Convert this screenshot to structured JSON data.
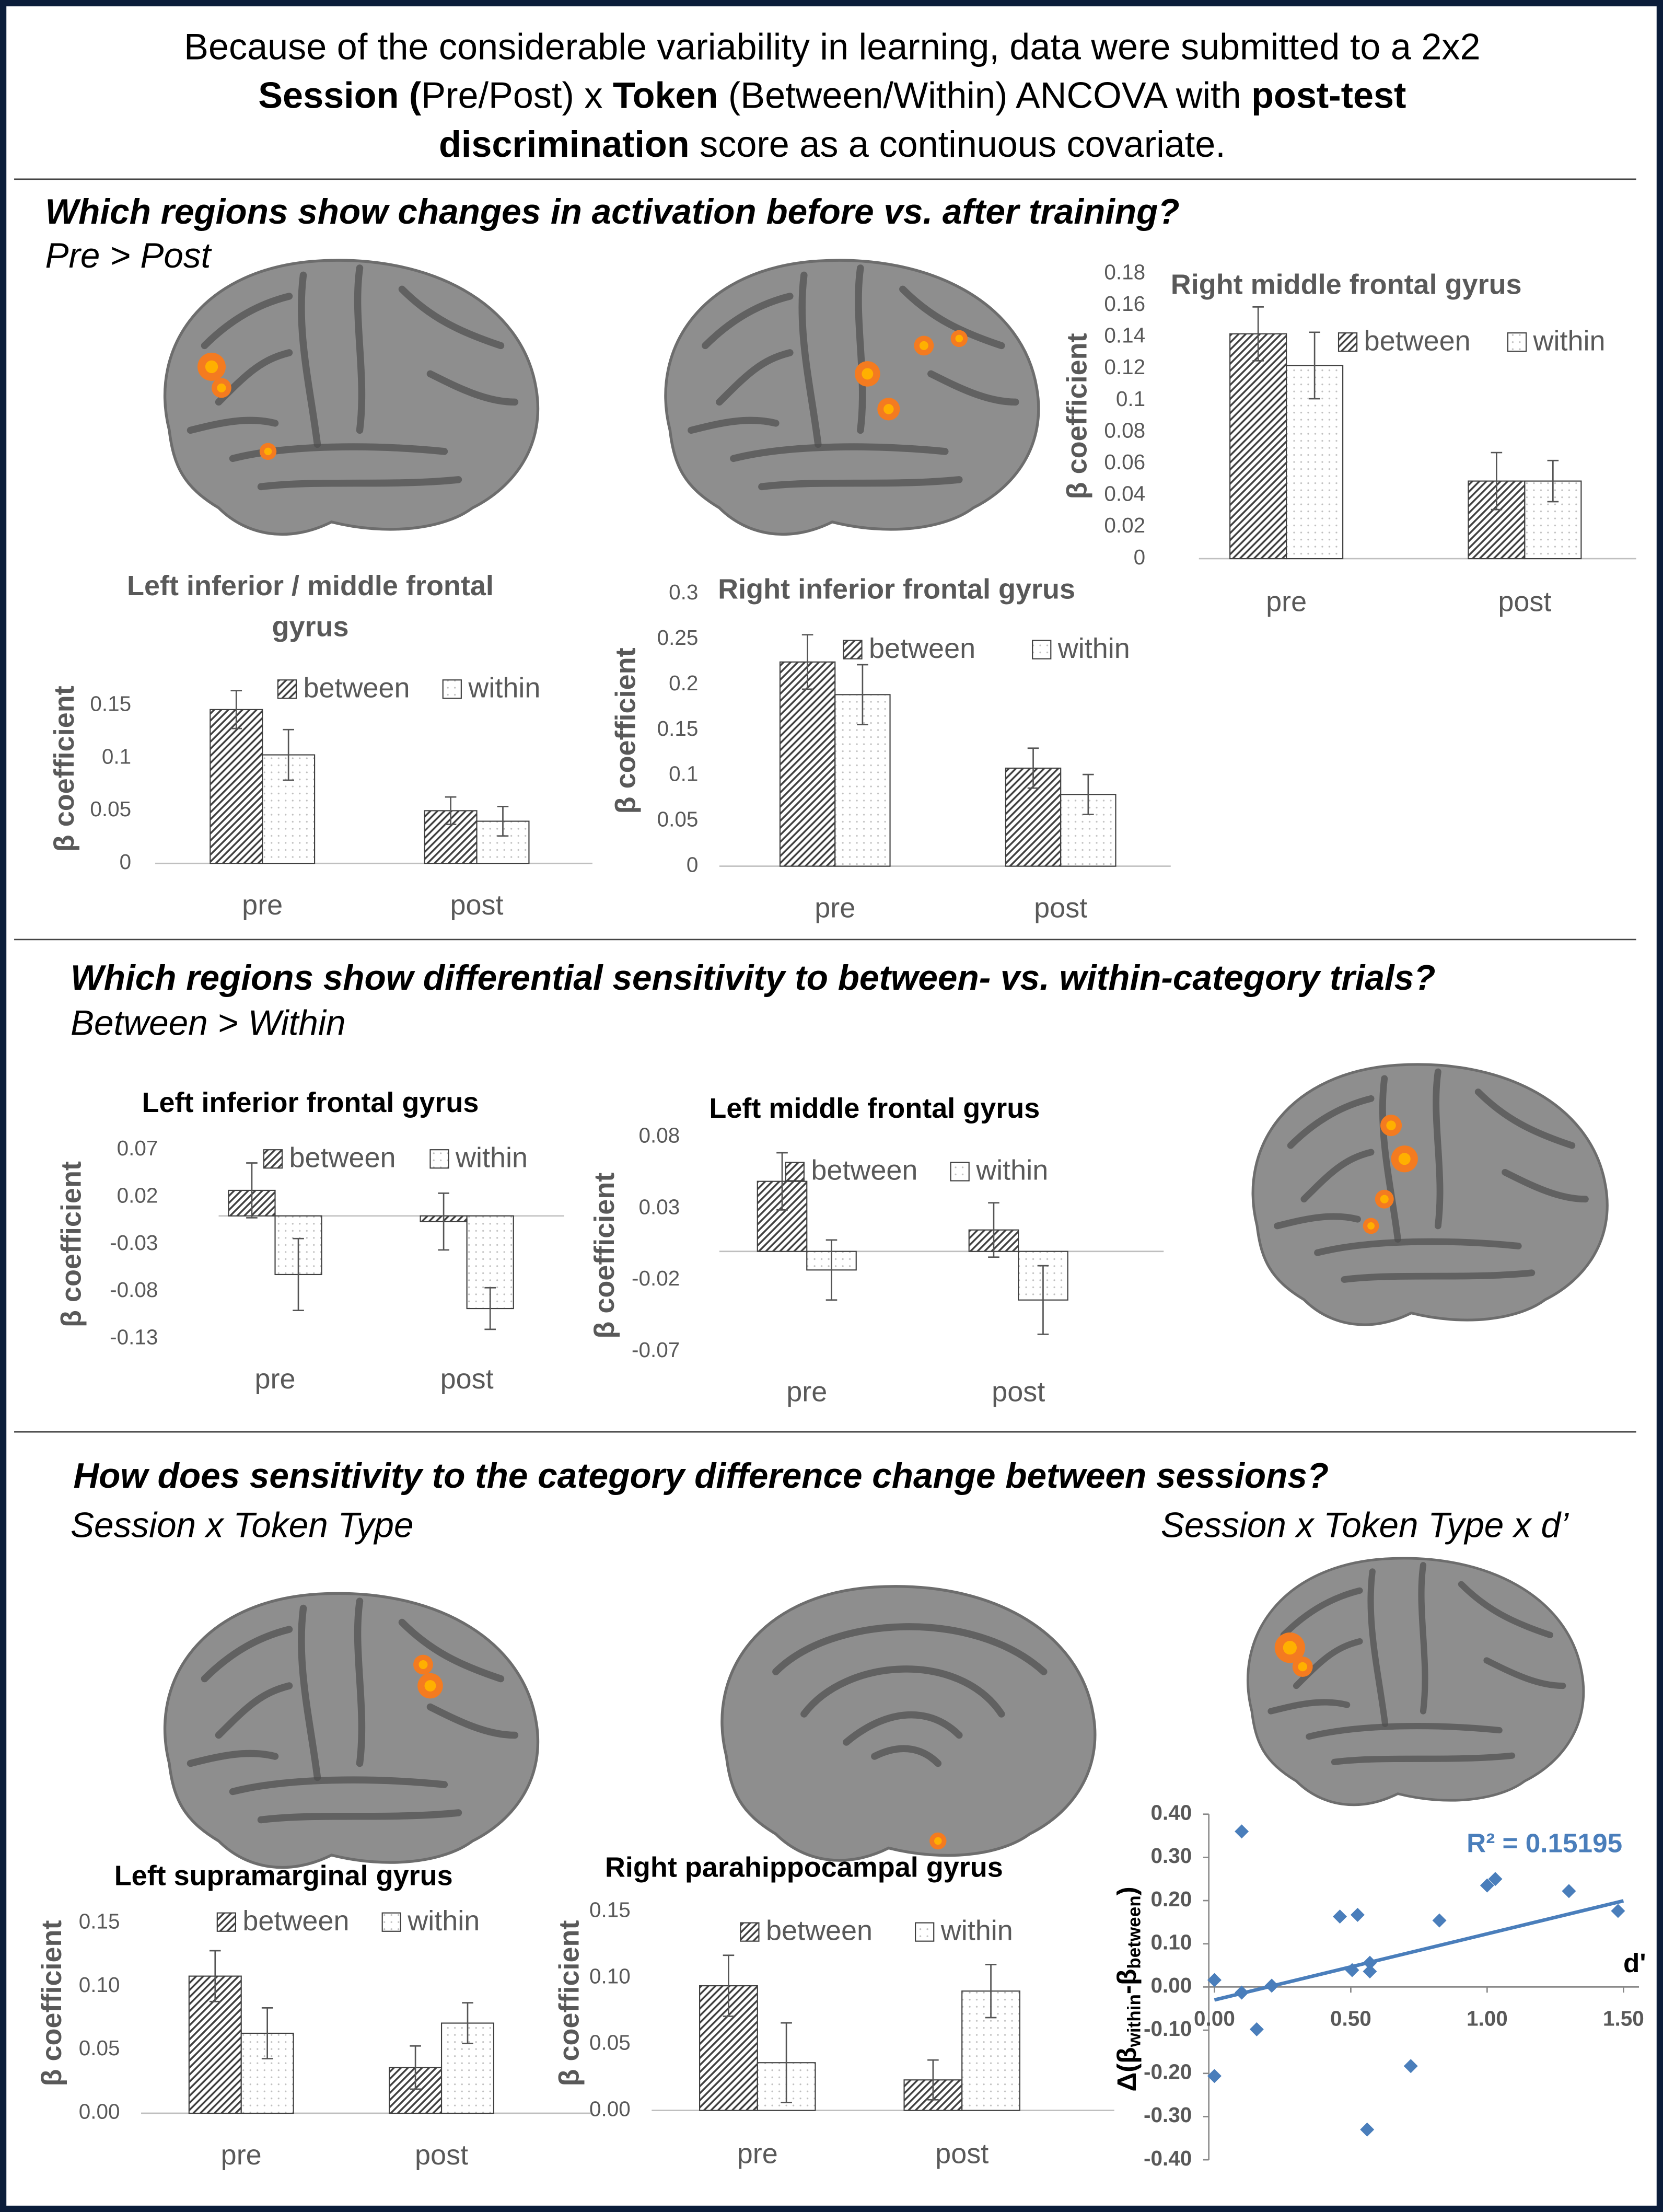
{
  "header": {
    "lines": [
      [
        {
          "text": "Because of the considerable variability in learning, data were submitted to a 2x2",
          "bold": false
        }
      ],
      [
        {
          "text": "Session (",
          "bold": true
        },
        {
          "text": "Pre/Post) x ",
          "bold": false
        },
        {
          "text": "Token",
          "bold": true
        },
        {
          "text": " (Between/Within) ANCOVA with ",
          "bold": false
        },
        {
          "text": "post-test",
          "bold": true
        }
      ],
      [
        {
          "text": "discrimination",
          "bold": true
        },
        {
          "text": " score as a continuous covariate.",
          "bold": false
        }
      ]
    ]
  },
  "sections": [
    {
      "question": "Which regions show changes in activation before vs. after training?",
      "contrasts": [
        "Pre > Post"
      ]
    },
    {
      "question": "Which regions show differential sensitivity to between- vs. within-category trials?",
      "contrasts": [
        "Between > Within"
      ]
    },
    {
      "question": "How does sensitivity to the category difference change between sessions?",
      "contrasts": [
        "Session x Token Type",
        "Session x Token Type x d’"
      ]
    }
  ],
  "chart_data": [
    {
      "type": "bar",
      "title": "Right middle frontal gyrus",
      "ylabel": "β  coefficient",
      "categories": [
        "pre",
        "post"
      ],
      "series": [
        {
          "name": "between",
          "color": "#404040",
          "values": [
            0.142,
            0.049
          ],
          "errors": [
            0.017,
            0.018
          ]
        },
        {
          "name": "within",
          "color": "#bfbfbf",
          "values": [
            0.122,
            0.049
          ],
          "errors": [
            0.021,
            0.013
          ]
        }
      ],
      "ylim": [
        0,
        0.18
      ],
      "yticks": [
        0,
        0.02,
        0.04,
        0.06,
        0.08,
        0.1,
        0.12,
        0.14,
        0.16,
        0.18
      ],
      "grid": false
    },
    {
      "type": "bar",
      "title": "Left inferior / middle frontal gyrus",
      "ylabel": "β  coefficient",
      "categories": [
        "pre",
        "post"
      ],
      "series": [
        {
          "name": "between",
          "color": "#404040",
          "values": [
            0.146,
            0.05
          ],
          "errors": [
            0.018,
            0.013
          ]
        },
        {
          "name": "within",
          "color": "#bfbfbf",
          "values": [
            0.103,
            0.04
          ],
          "errors": [
            0.024,
            0.014
          ]
        }
      ],
      "ylim": [
        0,
        0.15
      ],
      "yticks": [
        0,
        0.05,
        0.1,
        0.15
      ],
      "grid": false
    },
    {
      "type": "bar",
      "title": "Right inferior frontal gyrus",
      "ylabel": "β  coefficient",
      "categories": [
        "pre",
        "post"
      ],
      "series": [
        {
          "name": "between",
          "color": "#404040",
          "values": [
            0.225,
            0.108
          ],
          "errors": [
            0.03,
            0.022
          ]
        },
        {
          "name": "within",
          "color": "#bfbfbf",
          "values": [
            0.189,
            0.079
          ],
          "errors": [
            0.033,
            0.022
          ]
        }
      ],
      "ylim": [
        0,
        0.3
      ],
      "yticks": [
        0,
        0.05,
        0.1,
        0.15,
        0.2,
        0.25,
        0.3
      ],
      "grid": false
    },
    {
      "type": "bar",
      "title": "Left inferior frontal gyrus",
      "ylabel": "β  coefficient",
      "categories": [
        "pre",
        "post"
      ],
      "series": [
        {
          "name": "between",
          "color": "#404040",
          "values": [
            0.027,
            -0.006
          ],
          "errors": [
            0.029,
            0.03
          ]
        },
        {
          "name": "within",
          "color": "#bfbfbf",
          "values": [
            -0.062,
            -0.098
          ],
          "errors": [
            0.038,
            0.022
          ]
        }
      ],
      "ylim": [
        -0.13,
        0.07
      ],
      "yticks": [
        0.07,
        0.02,
        -0.03,
        -0.08,
        -0.13
      ],
      "grid": false
    },
    {
      "type": "bar",
      "title": "Left middle frontal gyrus",
      "ylabel": "β  coefficient",
      "categories": [
        "pre",
        "post"
      ],
      "series": [
        {
          "name": "between",
          "color": "#404040",
          "values": [
            0.049,
            0.015
          ],
          "errors": [
            0.02,
            0.019
          ]
        },
        {
          "name": "within",
          "color": "#bfbfbf",
          "values": [
            -0.013,
            -0.034
          ],
          "errors": [
            0.021,
            0.024
          ]
        }
      ],
      "ylim": [
        -0.07,
        0.08
      ],
      "yticks": [
        0.08,
        0.03,
        -0.02,
        -0.07
      ],
      "grid": false
    },
    {
      "type": "bar",
      "title": "Left supramarginal gyrus",
      "ylabel": "β  coefficient",
      "categories": [
        "pre",
        "post"
      ],
      "series": [
        {
          "name": "between",
          "color": "#404040",
          "values": [
            0.108,
            0.036
          ],
          "errors": [
            0.02,
            0.017
          ]
        },
        {
          "name": "within",
          "color": "#bfbfbf",
          "values": [
            0.063,
            0.071
          ],
          "errors": [
            0.02,
            0.016
          ]
        }
      ],
      "ylim": [
        0,
        0.15
      ],
      "yticks": [
        {
          "value": 0,
          "label": "0.00"
        },
        {
          "value": 0.05,
          "label": "0.05"
        },
        {
          "value": 0.1,
          "label": "0.10"
        },
        {
          "value": 0.15,
          "label": "0.15"
        }
      ],
      "grid": false
    },
    {
      "type": "bar",
      "title": "Right parahippocampal gyrus",
      "ylabel": "β  coefficient",
      "categories": [
        "pre",
        "post"
      ],
      "series": [
        {
          "name": "between",
          "color": "#404040",
          "values": [
            0.094,
            0.023
          ],
          "errors": [
            0.023,
            0.015
          ]
        },
        {
          "name": "within",
          "color": "#bfbfbf",
          "values": [
            0.036,
            0.09
          ],
          "errors": [
            0.03,
            0.02
          ]
        }
      ],
      "ylim": [
        0,
        0.15
      ],
      "yticks": [
        {
          "value": 0,
          "label": "0.00"
        },
        {
          "value": 0.05,
          "label": "0.05"
        },
        {
          "value": 0.1,
          "label": "0.10"
        },
        {
          "value": 0.15,
          "label": "0.15"
        }
      ],
      "grid": false
    },
    {
      "type": "scatter",
      "xlabel": "d'",
      "ylabel": [
        "Δ(β",
        "within",
        "-β",
        "between",
        ")"
      ],
      "annotation": "R² = 0.15195",
      "color": "#4a7ebb",
      "x": [
        0.0,
        0.1,
        0.1,
        0.155,
        0.21,
        0.0,
        0.46,
        0.525,
        0.505,
        0.57,
        0.57,
        0.825,
        0.72,
        0.56,
        1.0,
        1.03,
        1.3,
        1.48
      ],
      "y": [
        0.016,
        0.36,
        -0.013,
        -0.098,
        0.003,
        -0.206,
        0.163,
        0.167,
        0.039,
        0.036,
        0.056,
        0.154,
        -0.183,
        -0.33,
        0.235,
        0.25,
        0.222,
        0.176
      ],
      "trendline": {
        "slope": 0.153,
        "intercept": -0.03
      },
      "xlim": [
        0,
        1.5
      ],
      "ylim": [
        -0.4,
        0.4
      ],
      "xticks": [
        {
          "value": 0,
          "label": "0.00"
        },
        {
          "value": 0.5,
          "label": "0.50"
        },
        {
          "value": 1,
          "label": "1.00"
        },
        {
          "value": 1.5,
          "label": "1.50"
        }
      ],
      "yticks": [
        {
          "value": -0.4,
          "label": "-0.40"
        },
        {
          "value": -0.3,
          "label": "-0.30"
        },
        {
          "value": -0.2,
          "label": "-0.20"
        },
        {
          "value": -0.1,
          "label": "-0.10"
        },
        {
          "value": 0,
          "label": "0.00"
        },
        {
          "value": 0.1,
          "label": "0.10"
        },
        {
          "value": 0.2,
          "label": "0.20"
        },
        {
          "value": 0.3,
          "label": "0.30"
        },
        {
          "value": 0.4,
          "label": "0.40"
        }
      ],
      "grid": false
    }
  ]
}
